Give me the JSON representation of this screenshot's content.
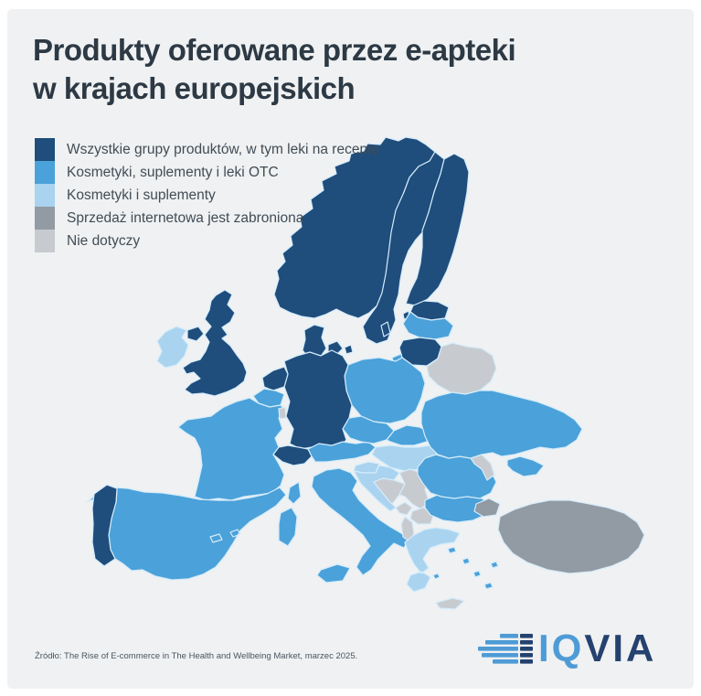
{
  "page": {
    "background": "#ffffff",
    "card_background": "#eff1f2"
  },
  "title": {
    "line1": "Produkty oferowane przez e-apteki",
    "line2": "w krajach europejskich"
  },
  "legend": {
    "items": [
      {
        "id": "all_products",
        "label": "Wszystkie grupy produktów, w tym leki na receptę",
        "color": "#1f4d7c"
      },
      {
        "id": "otc",
        "label": "Kosmetyki, suplementy i leki OTC",
        "color": "#4ba1d9"
      },
      {
        "id": "cosmetics",
        "label": "Kosmetyki i suplementy",
        "color": "#a9d3ef"
      },
      {
        "id": "banned",
        "label": "Sprzedaż internetowa jest zabroniona",
        "color": "#929aa3"
      },
      {
        "id": "na",
        "label": "Nie dotyczy",
        "color": "#c7cbd0"
      }
    ]
  },
  "map": {
    "border_color": "#d5ecfa",
    "countries": [
      {
        "id": "norway",
        "category": "all_products"
      },
      {
        "id": "sweden",
        "category": "all_products"
      },
      {
        "id": "finland",
        "category": "all_products"
      },
      {
        "id": "denmark",
        "category": "all_products"
      },
      {
        "id": "estonia",
        "category": "all_products"
      },
      {
        "id": "latvia",
        "category": "otc"
      },
      {
        "id": "lithuania",
        "category": "all_products"
      },
      {
        "id": "kaliningrad",
        "category": "otc"
      },
      {
        "id": "belarus",
        "category": "na"
      },
      {
        "id": "poland",
        "category": "otc"
      },
      {
        "id": "germany",
        "category": "all_products"
      },
      {
        "id": "netherlands",
        "category": "all_products"
      },
      {
        "id": "belgium",
        "category": "otc"
      },
      {
        "id": "france",
        "category": "otc"
      },
      {
        "id": "luxembourg",
        "category": "na"
      },
      {
        "id": "united_kingdom",
        "category": "all_products"
      },
      {
        "id": "ireland",
        "category": "cosmetics"
      },
      {
        "id": "spain",
        "category": "otc"
      },
      {
        "id": "portugal",
        "category": "all_products"
      },
      {
        "id": "italy",
        "category": "otc"
      },
      {
        "id": "austria",
        "category": "otc"
      },
      {
        "id": "czechia",
        "category": "otc"
      },
      {
        "id": "slovakia",
        "category": "otc"
      },
      {
        "id": "switzerland",
        "category": "all_products"
      },
      {
        "id": "hungary",
        "category": "cosmetics"
      },
      {
        "id": "slovenia",
        "category": "cosmetics"
      },
      {
        "id": "croatia",
        "category": "cosmetics"
      },
      {
        "id": "bosnia",
        "category": "na"
      },
      {
        "id": "serbia",
        "category": "na"
      },
      {
        "id": "montenegro",
        "category": "na"
      },
      {
        "id": "north_macedonia",
        "category": "na"
      },
      {
        "id": "albania",
        "category": "na"
      },
      {
        "id": "greece",
        "category": "cosmetics"
      },
      {
        "id": "aegean_islands",
        "category": "otc"
      },
      {
        "id": "crete",
        "category": "na"
      },
      {
        "id": "bulgaria",
        "category": "otc"
      },
      {
        "id": "romania",
        "category": "otc"
      },
      {
        "id": "moldova",
        "category": "na"
      },
      {
        "id": "ukraine",
        "category": "otc"
      },
      {
        "id": "turkey",
        "category": "banned"
      }
    ]
  },
  "source": {
    "text": "Źródło: The Rise of E-commerce in The Health and Wellbeing Market, marzec 2025."
  },
  "logo": {
    "text_light": "IQ",
    "text_dark": "VIA",
    "light_color": "#4e9bd6",
    "dark_color": "#25426f"
  }
}
